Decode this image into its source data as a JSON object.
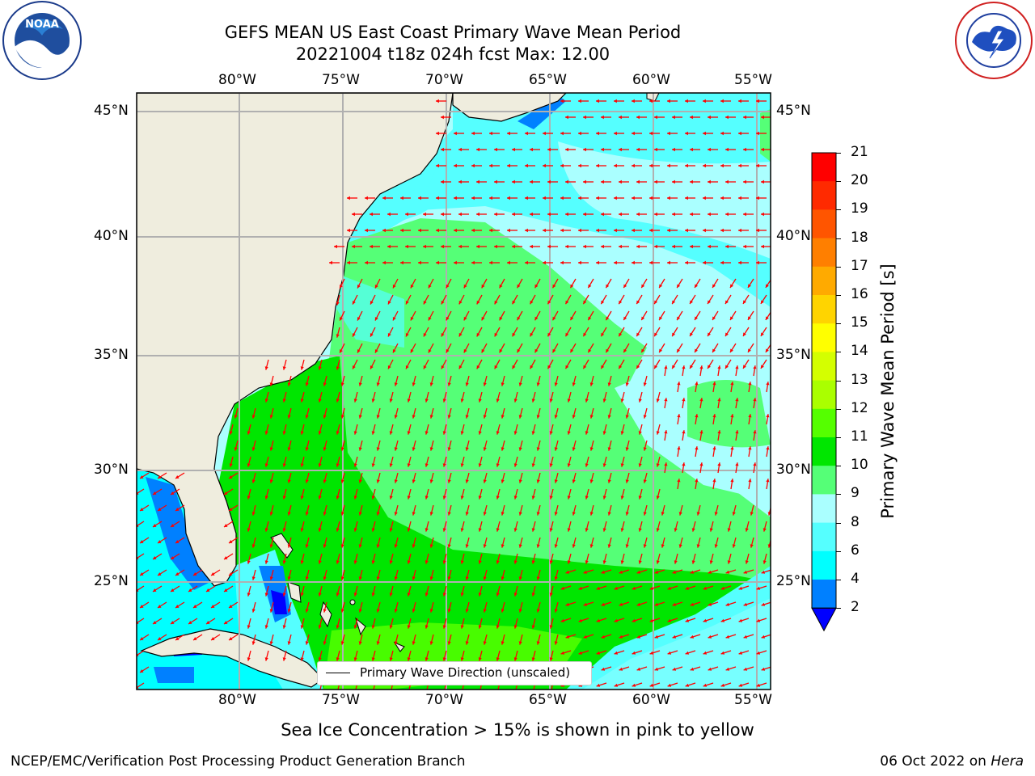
{
  "header": {
    "title_line1": "GEFS MEAN US East Coast Primary Wave Mean Period",
    "title_line2": "20221004 t18z 024h fcst   Max: 12.00"
  },
  "map": {
    "lon_ticks": [
      "80°W",
      "75°W",
      "70°W",
      "65°W",
      "60°W",
      "55°W"
    ],
    "lat_ticks": [
      "45°N",
      "40°N",
      "35°N",
      "30°N",
      "25°N"
    ],
    "legend_label": "Primary Wave Direction (unscaled)",
    "land_color": "#efedde",
    "arrow_color": "#ff0000",
    "gridline_color": "#b0b0b0"
  },
  "colorbar": {
    "label": "Primary Wave Mean Period [s]",
    "ticks": [
      "21",
      "20",
      "19",
      "18",
      "17",
      "16",
      "15",
      "14",
      "13",
      "12",
      "11",
      "10",
      "9",
      "8",
      "6",
      "4",
      "2"
    ],
    "colors": [
      "#ff0000",
      "#ff2a00",
      "#ff5500",
      "#ff7f00",
      "#ffaa00",
      "#ffd400",
      "#ffff00",
      "#d4ff00",
      "#aaff00",
      "#55ff00",
      "#00e600",
      "#55ff77",
      "#aaffff",
      "#55ffff",
      "#00ffff",
      "#0080ff",
      "#0000ff"
    ]
  },
  "caption": "Sea Ice Concentration > 15% is shown in pink to yellow",
  "footer": {
    "left": "NCEP/EMC/Verification Post Processing Product Generation Branch",
    "right_date": "06 Oct 2022 on ",
    "right_machine": "Hera"
  },
  "logos": {
    "left_text": "NOAA",
    "left_ring_text": "NATIONAL OCEANIC AND ATMOSPHERIC ADMINISTRATION · U.S. DEPARTMENT OF COMMERCE",
    "right_ring_text": "NATIONAL WEATHER SERVICE"
  }
}
